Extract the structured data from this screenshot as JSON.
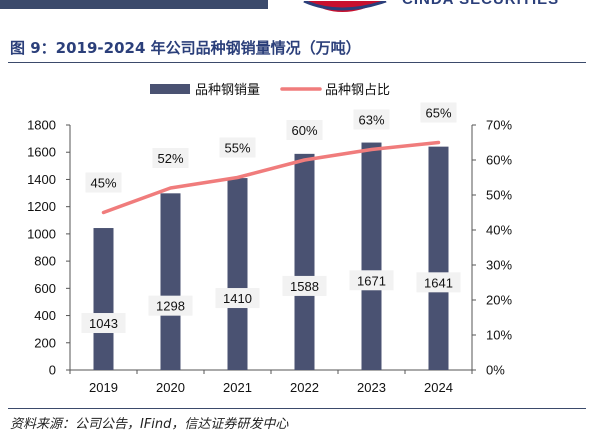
{
  "header": {
    "brand": "CINDA SECURITIES"
  },
  "figure": {
    "title": "图 9：2019-2024 年公司品种钢销量情况（万吨）",
    "source": "资料来源：公司公告，IFind，信达证券研发中心"
  },
  "chart_data": {
    "type": "bar",
    "categories": [
      "2019",
      "2020",
      "2021",
      "2022",
      "2023",
      "2024"
    ],
    "series": [
      {
        "name": "品种钢销量",
        "type": "bar",
        "axis": "left",
        "color": "#4a5272",
        "values": [
          1043,
          1298,
          1410,
          1588,
          1671,
          1641
        ],
        "labels": [
          "1043",
          "1298",
          "1410",
          "1588",
          "1671",
          "1641"
        ]
      },
      {
        "name": "品种钢占比",
        "type": "line",
        "axis": "right",
        "color": "#f07c7c",
        "values": [
          45,
          52,
          55,
          60,
          63,
          65
        ],
        "labels": [
          "45%",
          "52%",
          "55%",
          "60%",
          "63%",
          "65%"
        ]
      }
    ],
    "y_left": {
      "min": 0,
      "max": 1800,
      "ticks": [
        "0",
        "200",
        "400",
        "600",
        "800",
        "1000",
        "1200",
        "1400",
        "1600",
        "1800"
      ]
    },
    "y_right": {
      "min": 0,
      "max": 70,
      "ticks": [
        "0%",
        "10%",
        "20%",
        "30%",
        "40%",
        "50%",
        "60%",
        "70%"
      ]
    },
    "grid": false,
    "legend_position": "top"
  }
}
